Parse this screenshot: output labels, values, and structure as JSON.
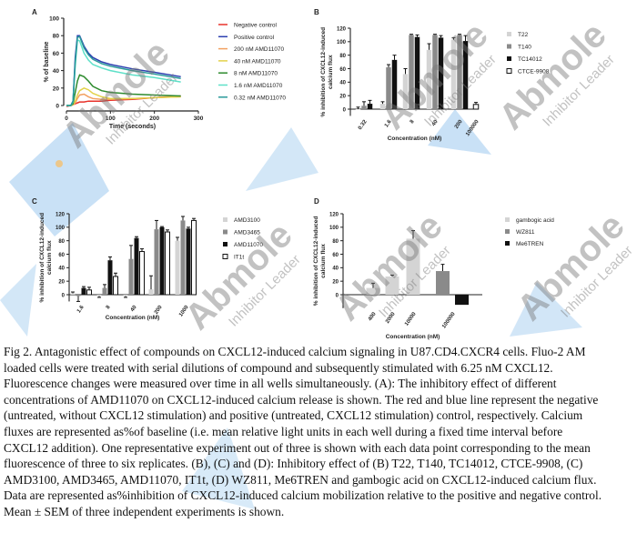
{
  "watermark": {
    "brand": "Abmole",
    "tagline": "Inhibitor Leader"
  },
  "panels": {
    "A": {
      "label": "A"
    },
    "B": {
      "label": "B"
    },
    "C": {
      "label": "C"
    },
    "D": {
      "label": "D"
    }
  },
  "chart_data": [
    {
      "id": "A",
      "type": "line",
      "xlabel": "Time (seconds)",
      "ylabel": "% of baseline",
      "xlim": [
        0,
        300
      ],
      "ylim": [
        0,
        100
      ],
      "xticks": [
        0,
        100,
        200,
        300
      ],
      "yticks": [
        0,
        20,
        40,
        60,
        80,
        100
      ],
      "legend_position": "right",
      "x": [
        0,
        10,
        15,
        20,
        25,
        30,
        40,
        50,
        60,
        80,
        100,
        150,
        200,
        260
      ],
      "series": [
        {
          "name": "Negative control",
          "color": "#e8322a",
          "values": [
            -1,
            0,
            1,
            2,
            3,
            4,
            4,
            5,
            5,
            5,
            6,
            7,
            9,
            11
          ]
        },
        {
          "name": "Positive control",
          "color": "#2b3fb0",
          "values": [
            0,
            0,
            5,
            55,
            80,
            80,
            68,
            60,
            55,
            50,
            47,
            42,
            38,
            33
          ]
        },
        {
          "name": "200 nM AMD11070",
          "color": "#f2a060",
          "values": [
            0,
            0,
            1,
            3,
            8,
            12,
            13,
            10,
            8,
            7,
            7,
            8,
            9,
            10
          ]
        },
        {
          "name": "40 nM AMD11070",
          "color": "#e3d24a",
          "values": [
            0,
            0,
            1,
            5,
            12,
            17,
            20,
            18,
            14,
            10,
            8,
            8,
            9,
            10
          ]
        },
        {
          "name": "8 nM AMD11070",
          "color": "#2e8b2e",
          "values": [
            0,
            0,
            2,
            15,
            28,
            35,
            33,
            28,
            22,
            17,
            15,
            13,
            12,
            11
          ]
        },
        {
          "name": "1.6 nM AMD11070",
          "color": "#5ee0c8",
          "values": [
            0,
            0,
            4,
            45,
            75,
            74,
            60,
            52,
            47,
            43,
            40,
            35,
            32,
            27
          ]
        },
        {
          "name": "0.32 nM AMD11070",
          "color": "#2a9a9a",
          "values": [
            0,
            0,
            5,
            50,
            78,
            79,
            66,
            58,
            53,
            48,
            45,
            40,
            36,
            31
          ]
        }
      ]
    },
    {
      "id": "B",
      "type": "bar",
      "xlabel": "Concentration (nM)",
      "ylabel": "% inhibition of CXCL12-induced calcium flux",
      "ylim": [
        -10,
        120
      ],
      "yticks": [
        0,
        20,
        40,
        60,
        80,
        100,
        120
      ],
      "legend_position": "right",
      "categories": [
        "0.32",
        "1.6",
        "8",
        "40",
        "200",
        "100000"
      ],
      "series": [
        {
          "name": "T22",
          "color": "#d4d4d4",
          "outline": false,
          "values": [
            0,
            8,
            52,
            88,
            103,
            null
          ],
          "errors": [
            3,
            3,
            8,
            9,
            3,
            null
          ]
        },
        {
          "name": "T140",
          "color": "#8a8a8a",
          "outline": false,
          "values": [
            5,
            62,
            110,
            110,
            110,
            null
          ],
          "errors": [
            6,
            4,
            1,
            1,
            1,
            null
          ]
        },
        {
          "name": "TC14012",
          "color": "#111111",
          "outline": false,
          "values": [
            8,
            73,
            107,
            106,
            101,
            null
          ],
          "errors": [
            5,
            7,
            3,
            3,
            8,
            null
          ]
        },
        {
          "name": "CTCE-9908",
          "color": "#ffffff",
          "outline": true,
          "values": [
            null,
            null,
            null,
            null,
            null,
            7
          ],
          "errors": [
            null,
            null,
            null,
            null,
            null,
            3
          ]
        }
      ]
    },
    {
      "id": "C",
      "type": "bar",
      "xlabel": "Concentration (nM)",
      "ylabel": "% inhibition of CXCL12-induced calcium flux",
      "ylim": [
        -10,
        120
      ],
      "yticks": [
        0,
        20,
        40,
        60,
        80,
        100,
        120
      ],
      "legend_position": "right",
      "categories": [
        "1.6",
        "8",
        "40",
        "200",
        "1000"
      ],
      "series": [
        {
          "name": "AMD3100",
          "color": "#d4d4d4",
          "outline": false,
          "values": [
            2,
            -2,
            -2,
            8,
            80
          ],
          "errors": [
            2,
            2,
            2,
            20,
            5
          ]
        },
        {
          "name": "AMD3465",
          "color": "#8a8a8a",
          "outline": false,
          "values": [
            -2,
            10,
            53,
            97,
            110
          ],
          "errors": [
            8,
            5,
            20,
            13,
            6
          ]
        },
        {
          "name": "AMD11070",
          "color": "#111111",
          "outline": false,
          "values": [
            10,
            51,
            84,
            100,
            98
          ],
          "errors": [
            2,
            5,
            2,
            1,
            2
          ]
        },
        {
          "name": "IT1t",
          "color": "#ffffff",
          "outline": true,
          "values": [
            7,
            27,
            64,
            93,
            110
          ],
          "errors": [
            4,
            5,
            4,
            3,
            3
          ]
        }
      ]
    },
    {
      "id": "D",
      "type": "bar",
      "xlabel": "Concentration (nM)",
      "ylabel": "% inhibition of CXCL12-induced calcium flux",
      "ylim": [
        -20,
        120
      ],
      "yticks": [
        0,
        20,
        40,
        60,
        80,
        100,
        120
      ],
      "legend_position": "right",
      "categories": [
        "400",
        "2000",
        "10000",
        "100000"
      ],
      "series": [
        {
          "name": "gambogic acid",
          "color": "#d4d4d4",
          "outline": false,
          "values": [
            10,
            27,
            83,
            null
          ],
          "errors": [
            7,
            2,
            12,
            null
          ]
        },
        {
          "name": "WZ811",
          "color": "#8a8a8a",
          "outline": false,
          "values": [
            null,
            null,
            null,
            35
          ],
          "errors": [
            null,
            null,
            null,
            10
          ]
        },
        {
          "name": "Me6TREN",
          "color": "#111111",
          "outline": false,
          "values": [
            null,
            null,
            null,
            -15
          ],
          "errors": [
            null,
            null,
            null,
            0
          ]
        }
      ]
    }
  ],
  "caption": {
    "lines": [
      "Fig 2. Antagonistic effect of compounds on CXCL12-induced calcium signaling in U87.CD4.CXCR4 cells. Fluo-2 AM",
      "loaded cells were treated with serial dilutions of compound and subsequently stimulated with 6.25 nM CXCL12.",
      "Fluorescence changes were measured over time in all wells simultaneously. (A): The inhibitory effect of different",
      "concentrations of AMD11070 on CXCL12-induced calcium release is shown. The red and blue line represent the negative",
      "(untreated, without CXCL12 stimulation) and positive (untreated, CXCL12 stimulation) control, respectively. Calcium",
      "fluxes are represented as%of baseline (i.e. mean relative light units in each well during a fixed time interval before",
      "CXCL12 addition). One representative experiment out of three is shown with each data point corresponding to the mean",
      "fluorescence of three to six replicates. (B), (C) and (D): Inhibitory effect of (B) T22, T140, TC14012, CTCE-9908, (C)",
      "AMD3100, AMD3465, AMD11070, IT1t, (D) WZ811, Me6TREN and gambogic acid on CXCL12-induced calcium flux.",
      "Data are represented as%inhibition of CXCL12-induced calcium mobilization relative to the positive and negative control.",
      "Mean ± SEM of three independent experiments is shown."
    ]
  }
}
